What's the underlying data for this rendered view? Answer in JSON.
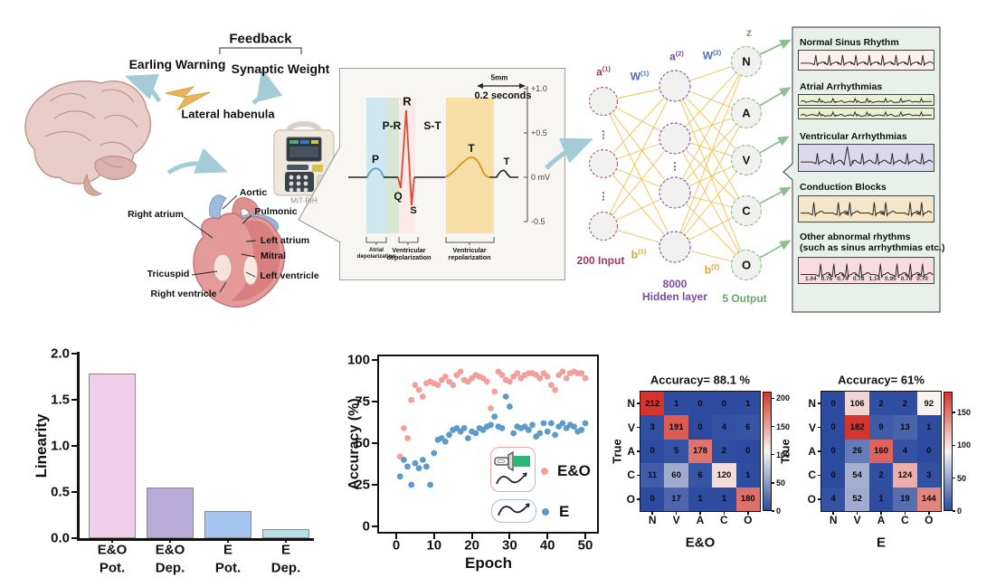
{
  "colors": {
    "arrow_blue": "#a3ccd8",
    "nn_line_yellow": "#f2c14e",
    "input_accent": "#9c3a62",
    "hidden_accent": "#7a4ba0",
    "output_accent": "#6aa86a",
    "weight_blue": "#4a6fbe",
    "bias_orange": "#d9a22a",
    "heat_low": "#2c4ba0",
    "heat_mid": "#f7f5f3",
    "heat_high": "#d5352c",
    "green_arrow": "#8cc08c"
  },
  "concept": {
    "feedback": "Feedback",
    "early_warning": "Earling Warning",
    "synaptic_weight": "Synaptic Weight",
    "lateral_habenula": "Lateral habenula",
    "device_label": "MIT-BIH",
    "heart": {
      "aortic": "Aortic",
      "pulmonic": "Pulmonic",
      "right_atrium": "Right atrium",
      "left_atrium": "Left atrium",
      "mitral": "Mitral",
      "tricuspid": "Tricuspid",
      "left_ventricle": "Left ventricle",
      "right_ventricle": "Right ventricle"
    }
  },
  "ecg_panel": {
    "scale_len": "5mm",
    "scale_time": "0.2 seconds",
    "y_axis": [
      "+1.0",
      "+0.5",
      "0 mV",
      "-0.5"
    ],
    "p": "P",
    "q": "Q",
    "r": "R",
    "s": "S",
    "t": "T",
    "t2": "T",
    "pr": "P-R",
    "st": "S-T",
    "phases": [
      "Atrial depolarization",
      "Ventricular depolarization",
      "Ventricular repolarization"
    ]
  },
  "network": {
    "a1": {
      "b": "a",
      "s": "(1)"
    },
    "w1": {
      "b": "W",
      "s": "(1)"
    },
    "a2": {
      "b": "a",
      "s": "(2)"
    },
    "w2": {
      "b": "W",
      "s": "(2)"
    },
    "b1": {
      "b": "b",
      "s": "(1)"
    },
    "b2": {
      "b": "b",
      "s": "(2)"
    },
    "z": "z",
    "input_label": "200 Input",
    "hidden_label_line1": "8000",
    "hidden_label_line2": "Hidden layer",
    "output_label": "5 Output",
    "output_nodes": [
      "N",
      "A",
      "V",
      "C",
      "O"
    ],
    "ellipsis": "⋮"
  },
  "rhythm_panel": {
    "sections": [
      {
        "title": "Normal Sinus Rhythm",
        "color": "#fdf0ef",
        "strips": 1,
        "kind": "normal"
      },
      {
        "title": "Atrial Arrhythmias",
        "color": "#eaf0d2",
        "strips": 2,
        "kind": "atrial"
      },
      {
        "title": "Ventricular Arrhythmias",
        "color": "#dbd8ea",
        "strips": 1,
        "kind": "ventricular"
      },
      {
        "title": "Conduction Blocks",
        "color": "#f6e6c9",
        "strips": 1,
        "kind": "conduction"
      },
      {
        "title": "Other abnormal rhythms",
        "subtitle": "(such as sinus arrhythmias etc.)",
        "color": "#f8dce1",
        "strips": 1,
        "kind": "other",
        "numbers": [
          "1.04",
          "0.76",
          "0.74",
          "0.78",
          "1.14",
          "0.95",
          "0.76",
          "0.70"
        ]
      }
    ]
  },
  "chart_data": [
    {
      "type": "bar",
      "ylabel": "Linearity",
      "categories": [
        "E&O Pot.",
        "E&O Dep.",
        "E Pot.",
        "E Dep."
      ],
      "categories_line1": [
        "E&O",
        "E&O",
        "E",
        "E"
      ],
      "categories_line2": [
        "Pot.",
        "Dep.",
        "Pot.",
        "Dep."
      ],
      "values": [
        1.78,
        0.55,
        0.29,
        0.1
      ],
      "ylim": [
        0,
        2.0
      ],
      "yticks": [
        "0.0",
        "0.5",
        "1.0",
        "1.5",
        "2.0"
      ],
      "bar_colors": [
        "#f0cde8",
        "#b9abd8",
        "#a2c4ee",
        "#b5e0e8"
      ]
    },
    {
      "type": "scatter",
      "xlabel": "Epoch",
      "ylabel": "Accuracy (%)",
      "xlim": [
        0,
        50
      ],
      "ylim": [
        0,
        100
      ],
      "xticks": [
        0,
        10,
        20,
        30,
        40,
        50
      ],
      "yticks": [
        0,
        25,
        50,
        75,
        100
      ],
      "legend_position": "lower right",
      "x": [
        1,
        2,
        3,
        4,
        5,
        6,
        7,
        8,
        9,
        10,
        11,
        12,
        13,
        14,
        15,
        16,
        17,
        18,
        19,
        20,
        21,
        22,
        23,
        24,
        25,
        26,
        27,
        28,
        29,
        30,
        31,
        32,
        33,
        34,
        35,
        36,
        37,
        38,
        39,
        40,
        41,
        42,
        43,
        44,
        45,
        46,
        47,
        48,
        49,
        50
      ],
      "series": [
        {
          "name": "E&O",
          "color": "#f2a09c",
          "y": [
            42,
            59,
            53,
            76,
            85,
            82,
            78,
            86,
            87,
            86,
            85,
            88,
            90,
            87,
            85,
            91,
            93,
            88,
            87,
            89,
            91,
            90,
            89,
            87,
            71,
            81,
            93,
            91,
            88,
            87,
            90,
            92,
            89,
            91,
            92,
            92,
            91,
            89,
            92,
            90,
            85,
            82,
            91,
            93,
            89,
            92,
            93,
            92,
            92,
            89
          ]
        },
        {
          "name": "E",
          "color": "#5b9ac9",
          "y": [
            30,
            40,
            36,
            25,
            38,
            35,
            40,
            36,
            25,
            44,
            52,
            53,
            51,
            55,
            58,
            59,
            57,
            59,
            53,
            57,
            56,
            59,
            58,
            60,
            61,
            66,
            60,
            59,
            78,
            72,
            56,
            60,
            59,
            60,
            58,
            61,
            54,
            56,
            62,
            57,
            62,
            55,
            60,
            62,
            59,
            61,
            60,
            57,
            58,
            62
          ]
        }
      ]
    },
    {
      "type": "heatmap",
      "title": "Accuracy= 88.1 %",
      "xlabel": "E&O",
      "ylabel": "True",
      "row_labels": [
        "N",
        "V",
        "A",
        "C",
        "O"
      ],
      "col_labels": [
        "N",
        "V",
        "A",
        "C",
        "O"
      ],
      "matrix": [
        [
          212,
          1,
          0,
          0,
          1
        ],
        [
          3,
          191,
          0,
          4,
          6
        ],
        [
          0,
          5,
          178,
          2,
          0
        ],
        [
          11,
          60,
          6,
          120,
          1
        ],
        [
          0,
          17,
          1,
          1,
          180
        ]
      ],
      "vmin": 0,
      "vmax": 212,
      "colorbar_ticks": [
        0,
        50,
        100,
        150,
        200
      ]
    },
    {
      "type": "heatmap",
      "title": "Accuracy= 61%",
      "xlabel": "E",
      "ylabel": "True",
      "row_labels": [
        "N",
        "V",
        "A",
        "C",
        "O"
      ],
      "col_labels": [
        "N",
        "V",
        "A",
        "C",
        "O"
      ],
      "matrix": [
        [
          0,
          106,
          2,
          2,
          92
        ],
        [
          0,
          182,
          9,
          13,
          1
        ],
        [
          0,
          26,
          160,
          4,
          0
        ],
        [
          0,
          54,
          2,
          124,
          3
        ],
        [
          4,
          52,
          1,
          19,
          144
        ]
      ],
      "vmin": 0,
      "vmax": 182,
      "colorbar_ticks": [
        0,
        50,
        100,
        150
      ]
    }
  ]
}
